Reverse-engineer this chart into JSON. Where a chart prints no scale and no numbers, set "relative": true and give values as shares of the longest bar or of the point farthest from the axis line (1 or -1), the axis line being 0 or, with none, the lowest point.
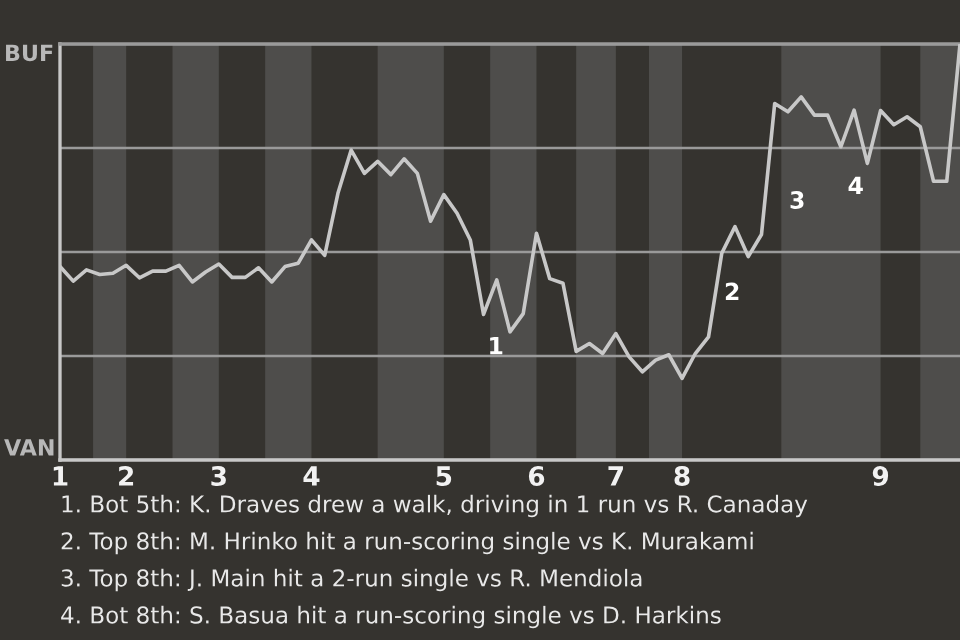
{
  "chart_data": {
    "type": "line",
    "relative": true,
    "categories": [
      "1",
      null,
      null,
      null,
      null,
      "2",
      null,
      null,
      null,
      null,
      null,
      null,
      "3",
      null,
      null,
      null,
      null,
      null,
      null,
      "4",
      null,
      null,
      null,
      null,
      null,
      null,
      null,
      null,
      null,
      "5",
      null,
      null,
      null,
      null,
      null,
      null,
      "6",
      null,
      null,
      null,
      null,
      null,
      "7",
      null,
      null,
      null,
      null,
      "8",
      null,
      null,
      null,
      null,
      null,
      null,
      null,
      null,
      null,
      null,
      null,
      null,
      null,
      null,
      "9",
      null,
      null,
      null,
      null,
      null,
      null
    ],
    "series": [
      {
        "color": "#c8c8c8",
        "values": [
          0.465,
          0.43,
          0.457,
          0.446,
          0.449,
          0.468,
          0.438,
          0.454,
          0.454,
          0.468,
          0.428,
          0.452,
          0.471,
          0.439,
          0.439,
          0.462,
          0.428,
          0.465,
          0.473,
          0.529,
          0.492,
          0.641,
          0.745,
          0.689,
          0.718,
          0.686,
          0.724,
          0.689,
          0.574,
          0.638,
          0.593,
          0.529,
          0.35,
          0.433,
          0.308,
          0.352,
          0.545,
          0.436,
          0.425,
          0.261,
          0.28,
          0.256,
          0.304,
          0.248,
          0.212,
          0.24,
          0.253,
          0.196,
          0.256,
          0.296,
          0.497,
          0.561,
          0.489,
          0.542,
          0.857,
          0.837,
          0.873,
          0.829,
          0.829,
          0.753,
          0.841,
          0.713,
          0.84,
          0.806,
          0.825,
          0.801,
          0.67,
          0.67,
          1.0
        ]
      }
    ],
    "grid": "y",
    "marker": "none",
    "line_style": "solid",
    "annotations": [
      "1",
      "2",
      "3",
      "4",
      "BUF",
      "VAN",
      "1. Bot 5th: K. Draves drew a walk, driving in 1 run vs R. Canaday",
      "2. Top 8th: M. Hrinko hit a run-scoring single vs K. Murakami",
      "3. Top 8th: J. Main hit a 2-run single vs R. Mendiola",
      "4. Bot 8th: S. Basua hit a run-scoring single vs D. Harkins"
    ]
  }
}
